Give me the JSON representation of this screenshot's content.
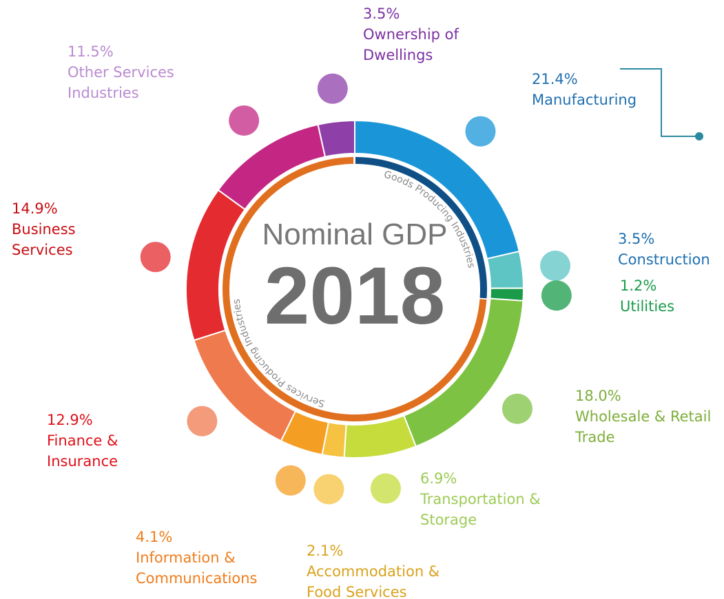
{
  "chart_data": {
    "type": "donut",
    "title": "Nominal GDP",
    "subtitle": "2018",
    "group_labels": [
      "Goods Producing Industries",
      "Services Producing Industries"
    ],
    "categories": [
      "Manufacturing",
      "Construction",
      "Utilities",
      "Wholesale & Retail Trade",
      "Transportation & Storage",
      "Accommodation & Food Services",
      "Information & Communications",
      "Finance & Insurance",
      "Business Services",
      "Other Services Industries",
      "Ownership of Dwellings"
    ],
    "values": [
      21.4,
      3.5,
      1.2,
      18.0,
      6.9,
      2.1,
      4.1,
      12.9,
      14.9,
      11.5,
      3.5
    ],
    "value_labels": [
      "21.4%",
      "3.5%",
      "1.2%",
      "18.0%",
      "6.9%",
      "2.1%",
      "4.1%",
      "12.9%",
      "14.9%",
      "11.5%",
      "3.5%"
    ],
    "colors": [
      "#1a96d8",
      "#5ec4c4",
      "#1a9b4a",
      "#7dc242",
      "#c6dc3c",
      "#f5c242",
      "#f59e24",
      "#ef7a4e",
      "#e42b2f",
      "#c42783",
      "#8e3fa8"
    ],
    "label_colors": [
      "#1f6fb0",
      "#1f6fb0",
      "#1a9b4a",
      "#7dae3a",
      "#9ccb55",
      "#d9a21c",
      "#ef7d1b",
      "#e0101a",
      "#c80d14",
      "#b98ad0",
      "#7b30a3"
    ]
  }
}
